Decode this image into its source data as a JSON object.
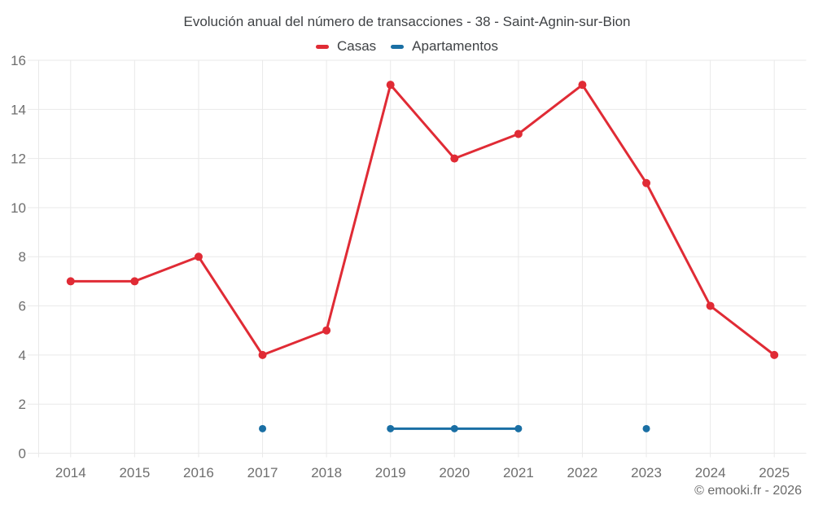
{
  "header": {
    "title": "Evolución anual del número de transacciones - 38 - Saint-Agnin-sur-Bion"
  },
  "footer": {
    "copyright": "© emooki.fr - 2026"
  },
  "colors": {
    "casas": "#e02b35",
    "apartamentos": "#1a6fa4",
    "grid": "#e9e9e9",
    "axis_label": "#6e6e6e",
    "title_text": "#3f4245"
  },
  "chart_data": {
    "type": "line",
    "title": "Evolución anual del número de transacciones - 38 - Saint-Agnin-sur-Bion",
    "xlabel": "",
    "ylabel": "",
    "categories": [
      "2014",
      "2015",
      "2016",
      "2017",
      "2018",
      "2019",
      "2020",
      "2021",
      "2022",
      "2023",
      "2024",
      "2025"
    ],
    "series": [
      {
        "name": "Casas",
        "color": "#e02b35",
        "values": [
          7,
          7,
          8,
          4,
          5,
          15,
          12,
          13,
          15,
          11,
          6,
          4
        ]
      },
      {
        "name": "Apartamentos",
        "color": "#1a6fa4",
        "values": [
          null,
          null,
          null,
          1,
          null,
          1,
          1,
          1,
          null,
          1,
          null,
          null
        ]
      }
    ],
    "ylim": [
      0,
      16
    ],
    "ytick_step": 2,
    "grid": true,
    "legend_position": "top"
  }
}
